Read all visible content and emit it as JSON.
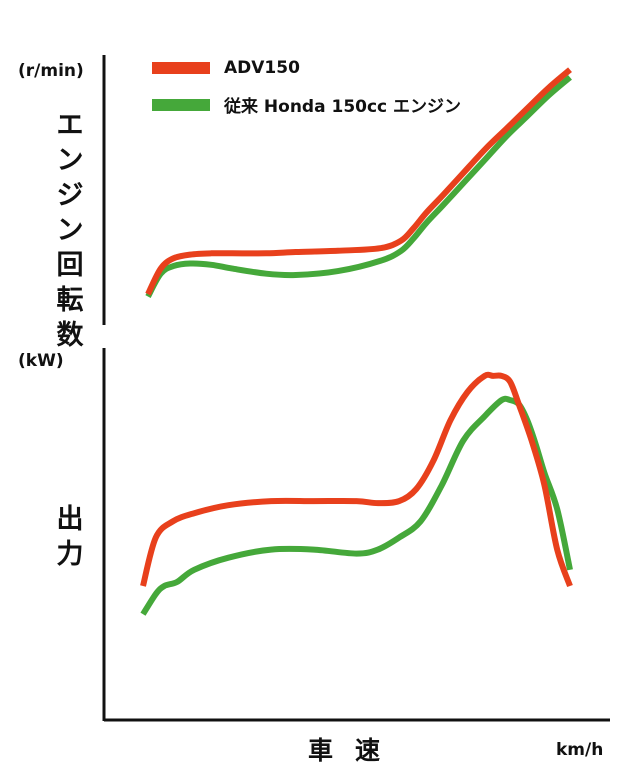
{
  "colors": {
    "adv150": "#e8401c",
    "conventional": "#45a83a",
    "axis": "#111111"
  },
  "legend": [
    {
      "label": "ADV150",
      "color": "#e8401c"
    },
    {
      "label": "従来 Honda 150cc エンジン",
      "color": "#45a83a"
    }
  ],
  "chart_data": [
    {
      "type": "line",
      "title": "",
      "ylabel": "エンジン回転数",
      "yunit": "(r/min)",
      "xlabel": "",
      "ticks": "none",
      "x_range": [
        0,
        100
      ],
      "y_range": [
        0,
        100
      ],
      "series": [
        {
          "name": "ADV150",
          "color": "#e8401c",
          "x": [
            0,
            3,
            6,
            10,
            15,
            20,
            28,
            35,
            45,
            55,
            60,
            63,
            66,
            70,
            75,
            80,
            85,
            90,
            95,
            100
          ],
          "y": [
            18,
            28,
            32,
            33.5,
            34,
            34,
            34,
            34.5,
            35,
            36,
            39,
            44,
            50,
            57,
            66,
            75,
            83,
            91,
            99,
            106
          ]
        },
        {
          "name": "従来 Honda 150cc エンジン",
          "color": "#45a83a",
          "x": [
            0,
            3,
            6,
            10,
            15,
            20,
            28,
            35,
            45,
            55,
            60,
            63,
            66,
            70,
            75,
            80,
            85,
            90,
            95,
            100
          ],
          "y": [
            17,
            26,
            29,
            30,
            29.5,
            28,
            26,
            25.5,
            27,
            31,
            35,
            40,
            46,
            53,
            62,
            71,
            80,
            88,
            96,
            103
          ]
        }
      ]
    },
    {
      "type": "line",
      "title": "",
      "ylabel": "出力",
      "yunit": "(kW)",
      "xlabel": "車速",
      "xunit": "km/h",
      "ticks": "none",
      "x_range": [
        0,
        100
      ],
      "y_range": [
        0,
        100
      ],
      "series": [
        {
          "name": "ADV150",
          "color": "#e8401c",
          "x": [
            0,
            3,
            7,
            12,
            20,
            30,
            40,
            50,
            55,
            60,
            64,
            68,
            72,
            76,
            80,
            82,
            84,
            86,
            88,
            91,
            94,
            97,
            100
          ],
          "y": [
            51,
            63,
            67,
            69,
            71,
            72,
            72,
            72,
            71.5,
            72,
            75,
            82,
            92,
            99,
            103,
            103,
            103,
            101.5,
            96,
            87,
            76,
            60,
            51
          ]
        },
        {
          "name": "従来 Honda 150cc エンジン",
          "color": "#45a83a",
          "x": [
            0,
            3,
            5,
            8,
            12,
            20,
            30,
            40,
            50,
            55,
            60,
            65,
            70,
            75,
            80,
            84,
            86,
            88,
            90,
            92,
            94,
            97,
            100
          ],
          "y": [
            44,
            49,
            51,
            52,
            55,
            58,
            60,
            60,
            59,
            60,
            63,
            67,
            76,
            87,
            93,
            97,
            97,
            96,
            92,
            86,
            79,
            70,
            55
          ]
        }
      ]
    }
  ]
}
